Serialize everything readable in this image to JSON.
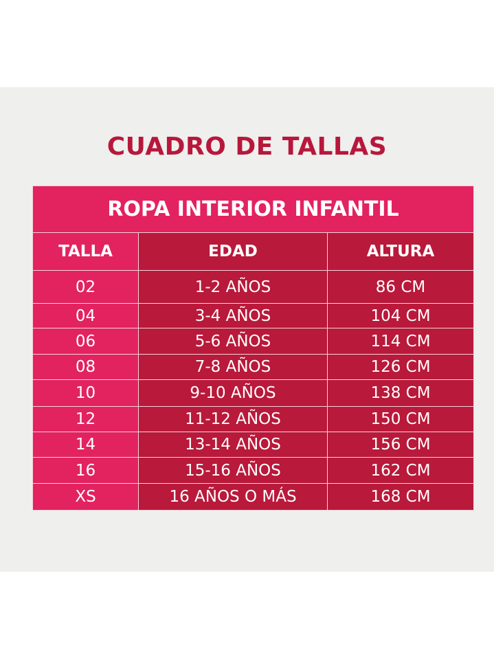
{
  "header": {
    "title": "CUADRO DE TALLAS"
  },
  "table": {
    "title": "ROPA INTERIOR INFANTIL",
    "columns": [
      "TALLA",
      "EDAD",
      "ALTURA"
    ],
    "rows": [
      [
        "02",
        "1-2 AÑOS",
        "86 CM"
      ],
      [
        "04",
        "3-4 AÑOS",
        "104 CM"
      ],
      [
        "06",
        "5-6 AÑOS",
        "114 CM"
      ],
      [
        "08",
        "7-8 AÑOS",
        "126 CM"
      ],
      [
        "10",
        "9-10 AÑOS",
        "138 CM"
      ],
      [
        "12",
        "11-12 AÑOS",
        "150 CM"
      ],
      [
        "14",
        "13-14 AÑOS",
        "156 CM"
      ],
      [
        "16",
        "15-16 AÑOS",
        "162 CM"
      ],
      [
        "XS",
        "16 AÑOS O MÁS",
        "168 CM"
      ]
    ]
  }
}
